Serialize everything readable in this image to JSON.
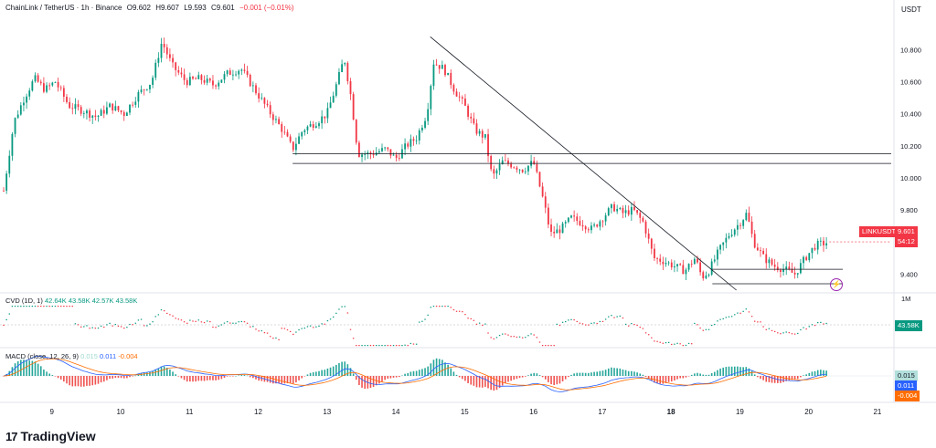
{
  "header": {
    "symbol": "ChainLink / TetherUS · 1h · Binance",
    "open": "O9.602",
    "high": "H9.607",
    "low": "L9.593",
    "close": "C9.601",
    "change": "−0.001 (−0.01%)"
  },
  "currency": "USDT",
  "cvd": {
    "label": "CVD (1D, 1)",
    "v1": "42.64K",
    "v2": "43.58K",
    "v3": "42.57K",
    "v4": "43.58K",
    "scale": "1M",
    "last_tag": "43.58K"
  },
  "macd": {
    "label": "MACD (close, 12, 26, 9)",
    "hist": "0.015",
    "macd": "0.011",
    "signal": "-0.004",
    "tag_hist": "0.015",
    "tag_macd": "0.011",
    "tag_signal": "-0.004"
  },
  "price_tag": {
    "symbol": "LINKUSDT",
    "price": "9.601",
    "countdown": "54:12"
  },
  "brand": "TradingView",
  "colors": {
    "up": "#089981",
    "down": "#f23645",
    "macd": "#2962ff",
    "signal": "#ff6d00"
  },
  "chart_data": {
    "type": "candlestick",
    "title": "ChainLink / TetherUS · 1h · Binance",
    "x_tick_labels": [
      "9",
      "10",
      "11",
      "12",
      "13",
      "14",
      "15",
      "16",
      "17",
      "18",
      "19",
      "20",
      "21"
    ],
    "y_tick_labels": [
      "10.800",
      "10.600",
      "10.400",
      "10.200",
      "10.000",
      "9.800",
      "9.400"
    ],
    "ylim": [
      9.3,
      10.95
    ],
    "x_range_days": [
      8.3,
      21.2
    ],
    "grid": false,
    "close_path": [
      [
        8.3,
        9.92
      ],
      [
        8.45,
        10.35
      ],
      [
        8.6,
        10.5
      ],
      [
        8.75,
        10.62
      ],
      [
        8.9,
        10.55
      ],
      [
        9.05,
        10.6
      ],
      [
        9.25,
        10.45
      ],
      [
        9.45,
        10.42
      ],
      [
        9.65,
        10.38
      ],
      [
        9.85,
        10.45
      ],
      [
        10.05,
        10.4
      ],
      [
        10.25,
        10.52
      ],
      [
        10.45,
        10.6
      ],
      [
        10.6,
        10.85
      ],
      [
        10.75,
        10.7
      ],
      [
        10.95,
        10.6
      ],
      [
        11.15,
        10.62
      ],
      [
        11.35,
        10.58
      ],
      [
        11.55,
        10.65
      ],
      [
        11.75,
        10.68
      ],
      [
        11.95,
        10.55
      ],
      [
        12.15,
        10.42
      ],
      [
        12.35,
        10.3
      ],
      [
        12.5,
        10.18
      ],
      [
        12.65,
        10.3
      ],
      [
        12.85,
        10.35
      ],
      [
        13.0,
        10.4
      ],
      [
        13.15,
        10.6
      ],
      [
        13.25,
        10.75
      ],
      [
        13.35,
        10.5
      ],
      [
        13.45,
        10.15
      ],
      [
        13.65,
        10.15
      ],
      [
        13.85,
        10.18
      ],
      [
        14.0,
        10.12
      ],
      [
        14.15,
        10.2
      ],
      [
        14.3,
        10.25
      ],
      [
        14.45,
        10.4
      ],
      [
        14.55,
        10.72
      ],
      [
        14.7,
        10.68
      ],
      [
        14.85,
        10.55
      ],
      [
        15.0,
        10.45
      ],
      [
        15.15,
        10.3
      ],
      [
        15.3,
        10.25
      ],
      [
        15.4,
        10.0
      ],
      [
        15.55,
        10.1
      ],
      [
        15.7,
        10.08
      ],
      [
        15.85,
        10.05
      ],
      [
        16.0,
        10.1
      ],
      [
        16.15,
        9.85
      ],
      [
        16.25,
        9.65
      ],
      [
        16.4,
        9.68
      ],
      [
        16.55,
        9.75
      ],
      [
        16.7,
        9.72
      ],
      [
        16.85,
        9.68
      ],
      [
        17.0,
        9.75
      ],
      [
        17.15,
        9.82
      ],
      [
        17.3,
        9.78
      ],
      [
        17.45,
        9.8
      ],
      [
        17.6,
        9.72
      ],
      [
        17.75,
        9.5
      ],
      [
        17.9,
        9.48
      ],
      [
        18.05,
        9.45
      ],
      [
        18.2,
        9.42
      ],
      [
        18.35,
        9.5
      ],
      [
        18.45,
        9.38
      ],
      [
        18.55,
        9.42
      ],
      [
        18.7,
        9.55
      ],
      [
        18.85,
        9.65
      ],
      [
        19.0,
        9.72
      ],
      [
        19.1,
        9.78
      ],
      [
        19.2,
        9.6
      ],
      [
        19.35,
        9.5
      ],
      [
        19.5,
        9.45
      ],
      [
        19.65,
        9.43
      ],
      [
        19.8,
        9.4
      ],
      [
        19.95,
        9.5
      ],
      [
        20.1,
        9.58
      ],
      [
        20.3,
        9.6
      ]
    ],
    "levels": [
      10.15,
      10.09,
      9.43,
      9.34
    ],
    "trendline": [
      [
        14.5,
        10.88
      ],
      [
        18.95,
        9.3
      ]
    ]
  }
}
